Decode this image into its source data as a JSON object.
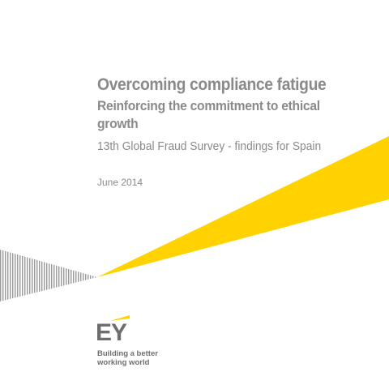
{
  "cover": {
    "title": "Overcoming compliance fatigue",
    "subtitle_lines": [
      "Reinforcing the commitment to ethical",
      "growth"
    ],
    "survey": "13th Global Fraud Survey - findings for Spain",
    "date": "June 2014",
    "logo": "EY",
    "tagline_lines": [
      "Building a better",
      "working world"
    ]
  }
}
